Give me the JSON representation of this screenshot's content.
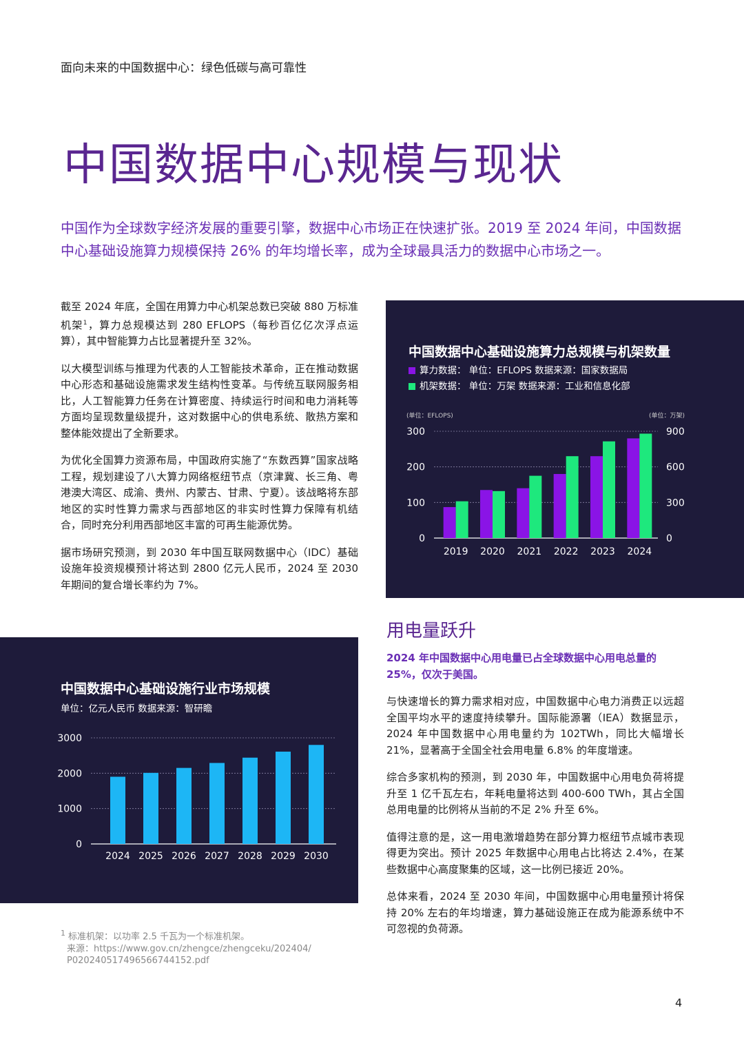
{
  "header": "面向未来的中国数据中心：绿色低碳与高可靠性",
  "title": "中国数据中心规模与现状",
  "intro": "中国作为全球数字经济发展的重要引擎，数据中心市场正在快速扩张。2019 至 2024 年间，中国数据中心基础设施算力规模保持 26% 的年均增长率，成为全球最具活力的数据中心市场之一。",
  "left_paragraphs": {
    "p1_a": "截至 2024 年底，全国在用算力中心机架总数已突破 880 万标准机架",
    "p1_sup": "1",
    "p1_b": "，算力总规模达到 280 EFLOPS（每秒百亿亿次浮点运算），其中智能算力占比显著提升至 32%。",
    "p2": "以大模型训练与推理为代表的人工智能技术革命，正在推动数据中心形态和基础设施需求发生结构性变革。与传统互联网服务相比，人工智能算力任务在计算密度、持续运行时间和电力消耗等方面均呈现数量级提升，这对数据中心的供电系统、散热方案和整体能效提出了全新要求。",
    "p3": "为优化全国算力资源布局，中国政府实施了“东数西算”国家战略工程，规划建设了八大算力网络枢纽节点（京津冀、长三角、粤港澳大湾区、成渝、贵州、内蒙古、甘肃、宁夏）。该战略将东部地区的实时性算力需求与西部地区的非实时性算力保障有机结合，同时充分利用西部地区丰富的可再生能源优势。",
    "p4": "据市场研究预测，到 2030 年中国互联网数据中心（IDC）基础设施年投资规模预计将达到 2800 亿元人民币，2024 至 2030 年期间的复合增长率约为 7%。"
  },
  "chart1": {
    "title": "中国数据中心基础设施算力总规模与机架数量",
    "legend1": "算力数据：  单位：EFLOPS   数据来源：国家数据局",
    "legend2": "机架数据：  单位：万架   数据来源：工业和信息化部",
    "left_unit": "(单位：EFLOPS)",
    "right_unit": "(单位：万架)",
    "colors": {
      "compute": "#8a14e6",
      "racks": "#1ee87d",
      "background": "#1e1b3a"
    }
  },
  "chart2": {
    "title": "中国数据中心基础设施行业市场规模",
    "unit": "单位：亿元人民币   数据来源：智研瞻",
    "colors": {
      "bar": "#1db6f5",
      "background": "#1e1b3a"
    }
  },
  "chart_data": [
    {
      "type": "bar",
      "title": "中国数据中心基础设施算力总规模与机架数量",
      "categories": [
        "2019",
        "2020",
        "2021",
        "2022",
        "2023",
        "2024"
      ],
      "series": [
        {
          "name": "算力数据",
          "axis": "left",
          "values": [
            87,
            135,
            140,
            180,
            230,
            280
          ]
        },
        {
          "name": "机架数据",
          "axis": "right",
          "values": [
            310,
            396,
            525,
            690,
            815,
            880
          ]
        }
      ],
      "ylim_left": [
        0,
        300
      ],
      "yticks_left": [
        0,
        100,
        200,
        300
      ],
      "ylim_right": [
        0,
        900
      ],
      "yticks_right": [
        0,
        300,
        600,
        900
      ],
      "ylabel_left": "(单位：EFLOPS)",
      "ylabel_right": "(单位：万架)",
      "grid": true,
      "legend": "top-left"
    },
    {
      "type": "bar",
      "title": "中国数据中心基础设施行业市场规模",
      "categories": [
        "2024",
        "2025",
        "2026",
        "2027",
        "2028",
        "2029",
        "2030"
      ],
      "values": [
        1900,
        2010,
        2150,
        2290,
        2440,
        2610,
        2800
      ],
      "ylim": [
        0,
        3000
      ],
      "yticks": [
        0,
        1000,
        2000,
        3000
      ],
      "grid": true
    }
  ],
  "right_section": {
    "subtitle": "用电量跃升",
    "highlight": "2024 年中国数据中心用电量已占全球数据中心用电总量的 25%，仅次于美国。",
    "p1": "与快速增长的算力需求相对应，中国数据中心电力消费正以远超全国平均水平的速度持续攀升。国际能源署（IEA）数据显示，2024 年中国数据中心用电量约为 102TWh，同比大幅增长 21%，显著高于全国全社会用电量 6.8% 的年度增速。",
    "p2": "综合多家机构的预测，到 2030 年，中国数据中心用电负荷将提升至 1 亿千瓦左右，年耗电量将达到 400-600 TWh，其占全国总用电量的比例将从当前的不足 2% 升至 6%。",
    "p3": "值得注意的是，这一用电激增趋势在部分算力枢纽节点城市表现得更为突出。预计 2025 年数据中心用电占比将达 2.4%，在某些数据中心高度聚集的区域，这一比例已接近 20%。",
    "p4": "总体来看，2024 至 2030 年间，中国数据中心用电量预计将保持 20% 左右的年均增速，算力基础设施正在成为能源系统中不可忽视的负荷源。"
  },
  "footnote": {
    "mark": "1",
    "line1": "标准机架：以功率 2.5 千瓦为一个标准机架。",
    "line2": "来源：https://www.gov.cn/zhengce/zhengceku/202404/",
    "line3": "P020240517496566744152.pdf"
  },
  "page_number": "4"
}
